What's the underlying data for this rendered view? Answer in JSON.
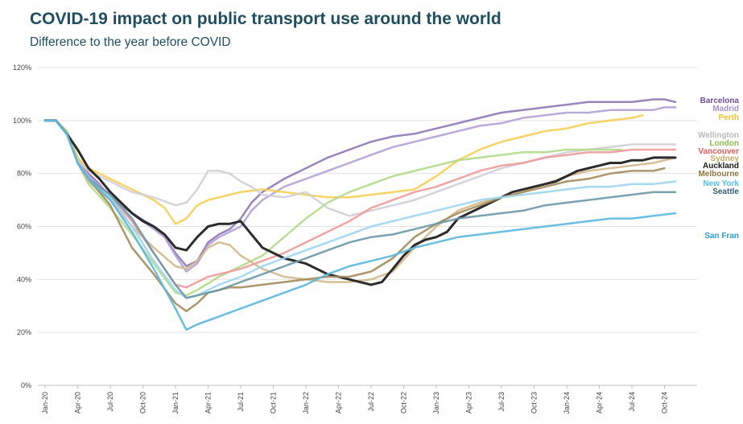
{
  "chart_data": {
    "type": "line",
    "title": "COVID-19 impact on public transport use around the world",
    "subtitle": "Difference to the year before COVID",
    "xlabel": "",
    "ylabel": "",
    "x_ticks": [
      "Jan-20",
      "Apr-20",
      "Jul-20",
      "Oct-20",
      "Jan-21",
      "Apr-21",
      "Jul-21",
      "Oct-21",
      "Jan-22",
      "Apr-22",
      "Jul-22",
      "Oct-22",
      "Jan-23",
      "Apr-23",
      "Jul-23",
      "Oct-23",
      "Jan-24",
      "Apr-24",
      "Jul-24",
      "Oct-24"
    ],
    "y_ticks": [
      "0%",
      "20%",
      "40%",
      "60%",
      "80%",
      "100%",
      "120%"
    ],
    "ylim": [
      0,
      120
    ],
    "grid": "horizontal",
    "legend": "direct labels at line ends (right)",
    "series": [
      {
        "name": "Barcelona",
        "color": "#8e79b5",
        "width": 2.5,
        "x": [
          0,
          1,
          2,
          3,
          4,
          5,
          6,
          8,
          10,
          11,
          12,
          13,
          14,
          15,
          16,
          17,
          18,
          19,
          20,
          22,
          24,
          26,
          28,
          30,
          32,
          34,
          36,
          38,
          40,
          42,
          44,
          46,
          48,
          50,
          52,
          54,
          56,
          57,
          58
        ],
        "y": [
          100,
          100,
          96,
          86,
          80,
          76,
          71,
          65,
          60,
          56,
          50,
          45,
          47,
          54,
          57,
          59,
          63,
          69,
          73,
          78,
          82,
          86,
          89,
          92,
          94,
          95,
          97,
          99,
          101,
          103,
          104,
          105,
          106,
          107,
          107,
          107,
          108,
          108,
          107
        ]
      },
      {
        "name": "Madrid",
        "color": "#b1a2d6",
        "width": 2.5,
        "x": [
          0,
          1,
          2,
          3,
          4,
          6,
          8,
          10,
          11,
          12,
          13,
          14,
          15,
          16,
          17,
          18,
          19,
          20,
          22,
          24,
          26,
          28,
          30,
          32,
          34,
          36,
          38,
          40,
          42,
          44,
          46,
          48,
          50,
          52,
          54,
          56,
          57,
          58
        ],
        "y": [
          100,
          100,
          96,
          85,
          79,
          72,
          65,
          59,
          56,
          49,
          43,
          46,
          53,
          56,
          58,
          60,
          66,
          70,
          75,
          78,
          81,
          84,
          87,
          90,
          92,
          94,
          96,
          98,
          99,
          101,
          102,
          103,
          103,
          104,
          104,
          104,
          105,
          105
        ]
      },
      {
        "name": "Perth",
        "color": "#f5cf55",
        "width": 2.5,
        "x": [
          0,
          1,
          2,
          3,
          4,
          6,
          8,
          10,
          11,
          12,
          13,
          14,
          15,
          16,
          17,
          18,
          20,
          22,
          24,
          26,
          28,
          30,
          32,
          34,
          36,
          38,
          40,
          42,
          44,
          46,
          48,
          50,
          52,
          54,
          55
        ],
        "y": [
          100,
          100,
          96,
          86,
          82,
          78,
          74,
          70,
          67,
          61,
          63,
          68,
          70,
          71,
          72,
          73,
          74,
          73,
          72,
          71,
          71,
          72,
          73,
          74,
          79,
          85,
          89,
          92,
          94,
          96,
          97,
          99,
          100,
          101,
          102
        ]
      },
      {
        "name": "Wellington",
        "color": "#cfcfd6",
        "width": 2.5,
        "x": [
          0,
          1,
          2,
          3,
          4,
          5,
          6,
          8,
          10,
          12,
          13,
          14,
          15,
          16,
          17,
          18,
          19,
          20,
          22,
          24,
          26,
          28,
          30,
          32,
          34,
          36,
          38,
          40,
          42,
          44,
          46,
          48,
          50,
          52,
          54,
          56,
          58
        ],
        "y": [
          100,
          100,
          95,
          85,
          81,
          79,
          77,
          73,
          71,
          68,
          69,
          74,
          81,
          81,
          80,
          77,
          75,
          72,
          71,
          73,
          67,
          64,
          66,
          68,
          70,
          73,
          76,
          79,
          82,
          84,
          86,
          88,
          89,
          90,
          91,
          91,
          91
        ]
      },
      {
        "name": "London",
        "color": "#b5d98a",
        "width": 2.5,
        "x": [
          0,
          1,
          2,
          3,
          4,
          6,
          8,
          10,
          12,
          13,
          14,
          16,
          18,
          20,
          22,
          24,
          26,
          28,
          30,
          32,
          34,
          36,
          38,
          40,
          42,
          44,
          46,
          48,
          50,
          52,
          53
        ],
        "y": [
          100,
          100,
          96,
          84,
          76,
          67,
          57,
          46,
          35,
          34,
          36,
          41,
          45,
          49,
          56,
          63,
          69,
          73,
          76,
          79,
          81,
          83,
          85,
          86,
          87,
          88,
          88,
          89,
          89,
          89,
          89
        ]
      },
      {
        "name": "Vancouver",
        "color": "#ee9b9b",
        "width": 2.5,
        "x": [
          0,
          1,
          2,
          3,
          4,
          6,
          8,
          10,
          12,
          13,
          14,
          15,
          16,
          18,
          20,
          22,
          24,
          26,
          28,
          30,
          32,
          34,
          36,
          38,
          40,
          42,
          44,
          46,
          48,
          50,
          52,
          54,
          56,
          58
        ],
        "y": [
          100,
          100,
          95,
          84,
          78,
          71,
          62,
          50,
          38,
          37,
          39,
          41,
          42,
          44,
          47,
          50,
          54,
          58,
          62,
          67,
          70,
          73,
          75,
          78,
          81,
          83,
          84,
          86,
          87,
          88,
          88,
          89,
          89,
          89
        ]
      },
      {
        "name": "Sydney",
        "color": "#d1b88a",
        "width": 2.5,
        "x": [
          0,
          1,
          2,
          3,
          4,
          6,
          8,
          10,
          12,
          13,
          14,
          15,
          16,
          17,
          18,
          20,
          22,
          24,
          26,
          28,
          30,
          32,
          34,
          36,
          38,
          40,
          42,
          44,
          46,
          48,
          50,
          52,
          54,
          56,
          58
        ],
        "y": [
          100,
          100,
          95,
          84,
          77,
          70,
          60,
          52,
          45,
          44,
          47,
          52,
          54,
          53,
          49,
          44,
          41,
          40,
          39,
          39,
          40,
          43,
          52,
          60,
          66,
          69,
          71,
          73,
          76,
          79,
          81,
          82,
          83,
          84,
          86
        ]
      },
      {
        "name": "Auckland",
        "color": "#2b2b2b",
        "width": 3,
        "x": [
          0,
          1,
          2,
          3,
          4,
          5,
          6,
          7,
          8,
          9,
          10,
          11,
          12,
          13,
          14,
          15,
          16,
          17,
          18,
          19,
          20,
          22,
          24,
          26,
          28,
          30,
          31,
          32,
          33,
          34,
          35,
          36,
          37,
          38,
          39,
          40,
          41,
          42,
          43,
          44,
          45,
          46,
          47,
          48,
          49,
          50,
          51,
          52,
          53,
          54,
          55,
          56,
          57,
          58
        ],
        "y": [
          100,
          100,
          95,
          89,
          82,
          78,
          73,
          69,
          65,
          62,
          60,
          57,
          52,
          51,
          56,
          60,
          61,
          61,
          62,
          57,
          52,
          48,
          46,
          42,
          40,
          38,
          39,
          44,
          49,
          53,
          55,
          56,
          58,
          63,
          65,
          67,
          69,
          71,
          73,
          74,
          75,
          76,
          77,
          79,
          81,
          82,
          83,
          84,
          84,
          85,
          85,
          86,
          86,
          86
        ]
      },
      {
        "name": "Melbourne",
        "color": "#a38c5c",
        "width": 2.5,
        "x": [
          0,
          1,
          2,
          3,
          4,
          6,
          8,
          10,
          12,
          13,
          14,
          15,
          16,
          17,
          18,
          20,
          22,
          24,
          26,
          28,
          30,
          32,
          34,
          36,
          38,
          40,
          42,
          44,
          46,
          48,
          50,
          52,
          54,
          56,
          57
        ],
        "y": [
          100,
          100,
          95,
          84,
          78,
          68,
          52,
          42,
          31,
          28,
          31,
          35,
          36,
          37,
          37,
          38,
          39,
          40,
          41,
          41,
          43,
          48,
          56,
          61,
          65,
          68,
          71,
          73,
          75,
          77,
          78,
          80,
          81,
          81,
          82
        ]
      },
      {
        "name": "New York",
        "color": "#9dd6ef",
        "width": 2.5,
        "x": [
          0,
          1,
          2,
          3,
          4,
          6,
          8,
          10,
          12,
          13,
          14,
          15,
          16,
          18,
          20,
          22,
          24,
          26,
          28,
          30,
          32,
          34,
          36,
          38,
          40,
          42,
          44,
          46,
          48,
          50,
          52,
          54,
          56,
          58
        ],
        "y": [
          100,
          100,
          95,
          84,
          78,
          71,
          60,
          47,
          36,
          33,
          34,
          36,
          38,
          41,
          45,
          48,
          51,
          54,
          57,
          60,
          62,
          64,
          66,
          68,
          70,
          71,
          72,
          73,
          74,
          75,
          75,
          76,
          76,
          77
        ]
      },
      {
        "name": "Seattle",
        "color": "#6d98a8",
        "width": 2.5,
        "x": [
          0,
          1,
          2,
          3,
          4,
          6,
          8,
          10,
          12,
          13,
          14,
          16,
          18,
          20,
          22,
          24,
          26,
          28,
          30,
          32,
          34,
          36,
          38,
          40,
          42,
          44,
          46,
          48,
          50,
          52,
          54,
          56,
          58
        ],
        "y": [
          100,
          100,
          95,
          84,
          78,
          72,
          63,
          50,
          38,
          33,
          34,
          36,
          39,
          42,
          45,
          48,
          51,
          54,
          56,
          57,
          59,
          61,
          63,
          64,
          65,
          66,
          68,
          69,
          70,
          71,
          72,
          73,
          73
        ]
      },
      {
        "name": "San Fran",
        "color": "#5ab8dd",
        "width": 2.5,
        "x": [
          0,
          1,
          2,
          3,
          4,
          6,
          8,
          10,
          12,
          13,
          14,
          16,
          18,
          20,
          22,
          24,
          26,
          28,
          30,
          32,
          34,
          36,
          38,
          40,
          42,
          44,
          46,
          48,
          50,
          52,
          54,
          56,
          58
        ],
        "y": [
          100,
          100,
          95,
          84,
          78,
          70,
          58,
          44,
          29,
          21,
          23,
          26,
          29,
          32,
          35,
          38,
          42,
          45,
          47,
          49,
          52,
          54,
          56,
          57,
          58,
          59,
          60,
          61,
          62,
          63,
          63,
          64,
          65
        ]
      }
    ],
    "labels": [
      {
        "name": "Barcelona",
        "color": "#6b4f9a"
      },
      {
        "name": "Madrid",
        "color": "#a690cd"
      },
      {
        "name": "Perth",
        "color": "#f2c230"
      },
      {
        "name": "Wellington",
        "color": "#b9b9c2"
      },
      {
        "name": "London",
        "color": "#8cc04f"
      },
      {
        "name": "Vancouver",
        "color": "#e25959"
      },
      {
        "name": "Sydney",
        "color": "#c7a867"
      },
      {
        "name": "Auckland",
        "color": "#1a1a1a"
      },
      {
        "name": "Melbourne",
        "color": "#8f7640"
      },
      {
        "name": "New York",
        "color": "#4fc0ec"
      },
      {
        "name": "Seattle",
        "color": "#2f5f73"
      },
      {
        "name": "San Fran",
        "color": "#2e9fd1"
      }
    ]
  }
}
